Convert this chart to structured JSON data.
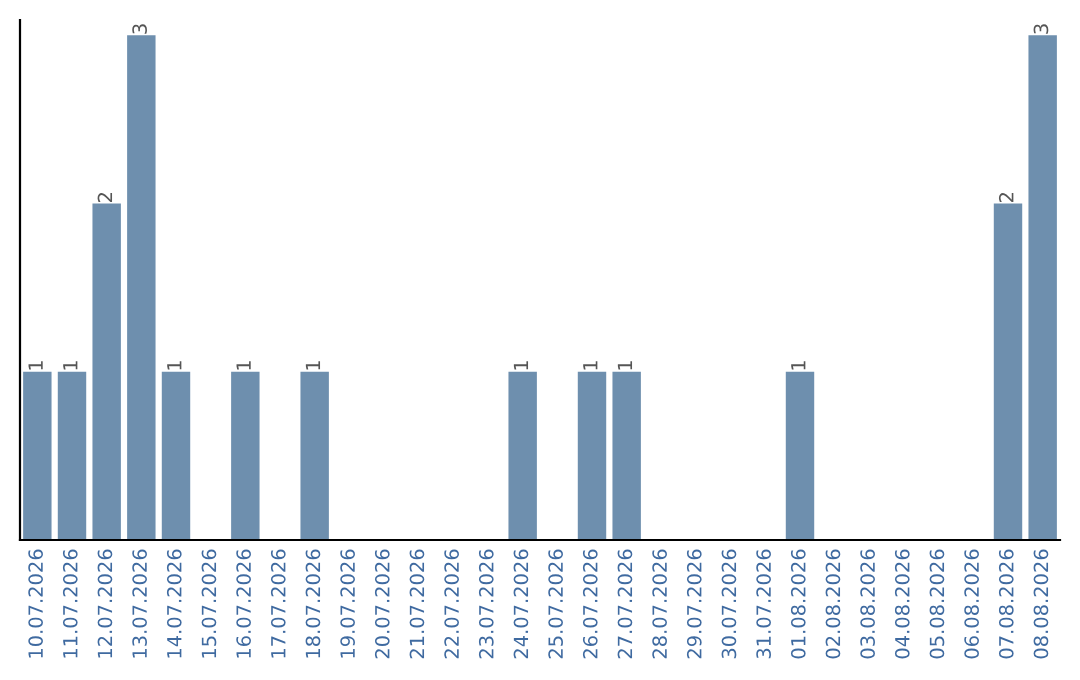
{
  "chart_data": {
    "type": "bar",
    "categories": [
      "10.07.2026",
      "11.07.2026",
      "12.07.2026",
      "13.07.2026",
      "14.07.2026",
      "15.07.2026",
      "16.07.2026",
      "17.07.2026",
      "18.07.2026",
      "19.07.2026",
      "20.07.2026",
      "21.07.2026",
      "22.07.2026",
      "23.07.2026",
      "24.07.2026",
      "25.07.2026",
      "26.07.2026",
      "27.07.2026",
      "28.07.2026",
      "29.07.2026",
      "30.07.2026",
      "31.07.2026",
      "01.08.2026",
      "02.08.2026",
      "03.08.2026",
      "04.08.2026",
      "05.08.2026",
      "06.08.2026",
      "07.08.2026",
      "08.08.2026"
    ],
    "values": [
      1,
      1,
      2,
      3,
      1,
      0,
      1,
      0,
      1,
      0,
      0,
      0,
      0,
      0,
      1,
      0,
      1,
      1,
      0,
      0,
      0,
      0,
      1,
      0,
      0,
      0,
      0,
      0,
      2,
      3
    ],
    "value_labels": [
      "1",
      "1",
      "2",
      "3",
      "1",
      null,
      "1",
      null,
      "1",
      null,
      null,
      null,
      null,
      null,
      "1",
      null,
      "1",
      "1",
      null,
      null,
      null,
      null,
      "1",
      null,
      null,
      null,
      null,
      null,
      "2",
      "3"
    ],
    "color": "#6e8fae",
    "grid": false,
    "legend": false
  }
}
